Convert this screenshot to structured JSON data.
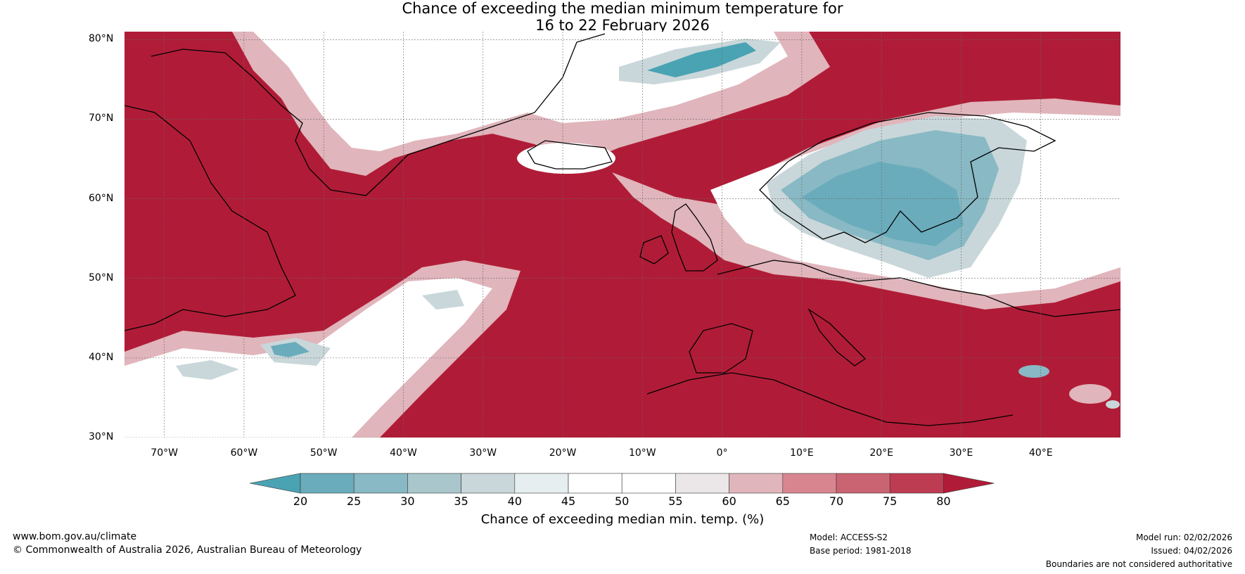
{
  "title": {
    "line1": "Chance of exceeding the median minimum temperature for",
    "line2": "16 to 22 February 2026"
  },
  "map": {
    "lat_labels": [
      "80°N",
      "70°N",
      "60°N",
      "50°N",
      "40°N",
      "30°N"
    ],
    "lat_values": [
      80,
      70,
      60,
      50,
      40,
      30
    ],
    "lon_labels": [
      "70°W",
      "60°W",
      "50°W",
      "40°W",
      "30°W",
      "20°W",
      "10°W",
      "0°",
      "10°E",
      "20°E",
      "30°E",
      "40°E"
    ],
    "lon_values": [
      -70,
      -60,
      -50,
      -40,
      -30,
      -20,
      -10,
      0,
      10,
      20,
      30,
      40
    ],
    "lon_range": [
      -75,
      50
    ],
    "lat_range": [
      30,
      81
    ]
  },
  "colorbar": {
    "ticks": [
      "20",
      "25",
      "30",
      "35",
      "40",
      "45",
      "50",
      "55",
      "60",
      "65",
      "70",
      "75",
      "80"
    ],
    "colors": [
      "#4aa3b3",
      "#6aacbb",
      "#88b9c4",
      "#a9c6cc",
      "#c9d7da",
      "#e6eeef",
      "#ffffff",
      "#ffffff",
      "#ebe7e8",
      "#e0b5bb",
      "#d98590",
      "#cb6472",
      "#be3c52",
      "#b01c37"
    ],
    "label": "Chance of exceeding median min. temp. (%)"
  },
  "footer": {
    "website": "www.bom.gov.au/climate",
    "copyright": "© Commonwealth of Australia 2026, Australian Bureau of Meteorology",
    "model": "Model: ACCESS-S2",
    "base_period": "Base period: 1981-2018",
    "model_run": "Model run: 02/02/2026",
    "issued": "Issued: 04/02/2026",
    "disclaimer": "Boundaries are not considered authoritative"
  }
}
